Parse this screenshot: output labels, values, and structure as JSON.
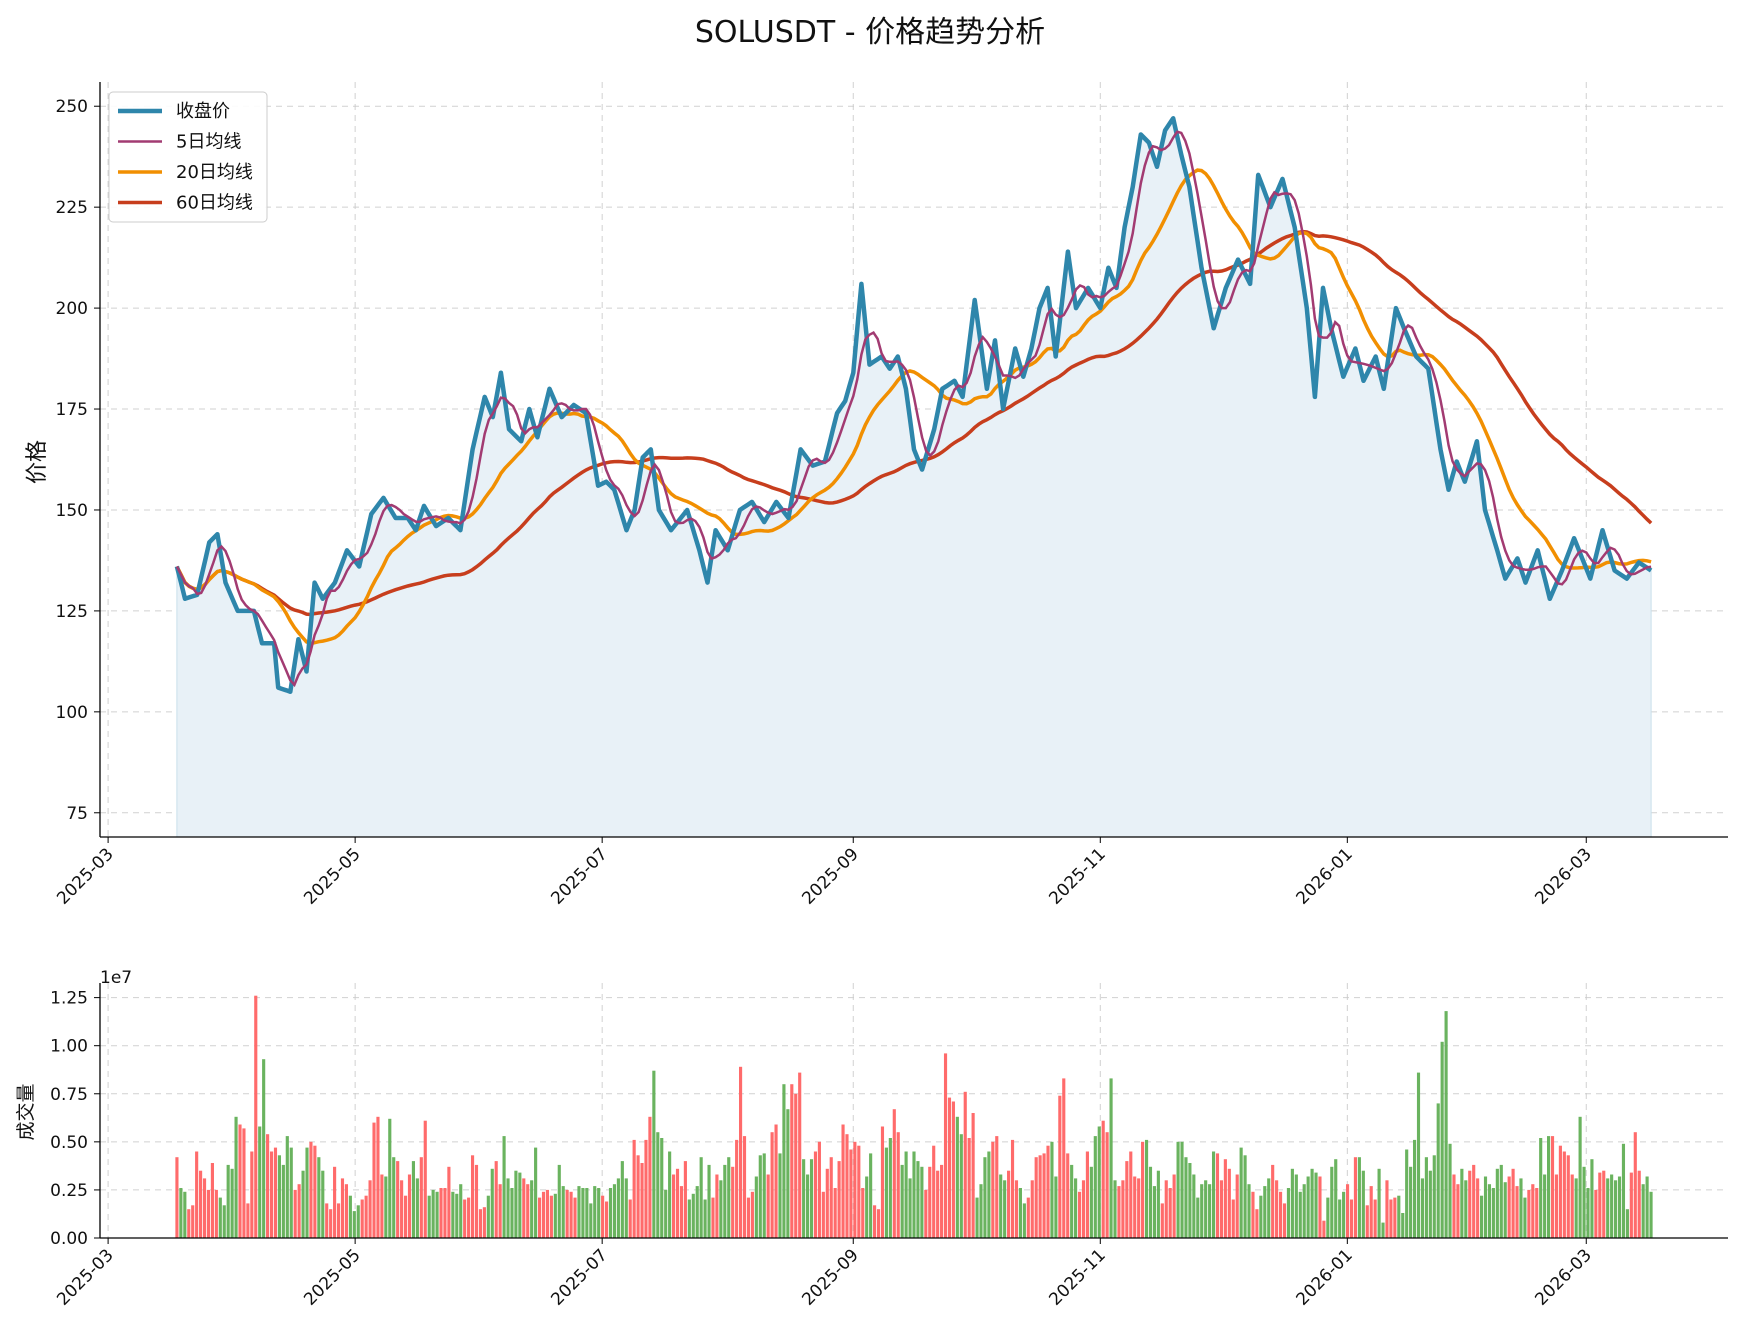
{
  "chart_data": [
    {
      "type": "line",
      "title": "SOLUSDT - 价格趋势分析",
      "ylabel": "价格",
      "xlabel": "",
      "ylim": [
        69,
        256
      ],
      "yticks": [
        75,
        100,
        125,
        150,
        175,
        200,
        225,
        250
      ],
      "xlim": [
        "2025-02-27",
        "2026-04-05"
      ],
      "xticks": [
        "2025-03",
        "2025-05",
        "2025-07",
        "2025-09",
        "2025-11",
        "2026-01",
        "2026-03"
      ],
      "grid": true,
      "legend_position": "top-left",
      "series": [
        {
          "name": "收盘价",
          "color": "#2E86AB",
          "fill": "#E8F1F7",
          "points": [
            [
              "2025-03-18",
              136
            ],
            [
              "2025-03-20",
              128
            ],
            [
              "2025-03-23",
              129
            ],
            [
              "2025-03-26",
              142
            ],
            [
              "2025-03-28",
              144
            ],
            [
              "2025-03-30",
              132
            ],
            [
              "2025-04-02",
              125
            ],
            [
              "2025-04-06",
              125
            ],
            [
              "2025-04-08",
              117
            ],
            [
              "2025-04-11",
              117
            ],
            [
              "2025-04-12",
              106
            ],
            [
              "2025-04-15",
              105
            ],
            [
              "2025-04-17",
              118
            ],
            [
              "2025-04-19",
              110
            ],
            [
              "2025-04-21",
              132
            ],
            [
              "2025-04-23",
              128
            ],
            [
              "2025-04-26",
              132
            ],
            [
              "2025-04-29",
              140
            ],
            [
              "2025-05-02",
              136
            ],
            [
              "2025-05-05",
              149
            ],
            [
              "2025-05-08",
              153
            ],
            [
              "2025-05-11",
              148
            ],
            [
              "2025-05-14",
              148
            ],
            [
              "2025-05-16",
              145
            ],
            [
              "2025-05-18",
              151
            ],
            [
              "2025-05-21",
              146
            ],
            [
              "2025-05-24",
              148
            ],
            [
              "2025-05-27",
              145
            ],
            [
              "2025-05-30",
              165
            ],
            [
              "2025-06-02",
              178
            ],
            [
              "2025-06-04",
              173
            ],
            [
              "2025-06-06",
              184
            ],
            [
              "2025-06-08",
              170
            ],
            [
              "2025-06-11",
              167
            ],
            [
              "2025-06-13",
              175
            ],
            [
              "2025-06-15",
              168
            ],
            [
              "2025-06-18",
              180
            ],
            [
              "2025-06-21",
              173
            ],
            [
              "2025-06-24",
              176
            ],
            [
              "2025-06-27",
              174
            ],
            [
              "2025-06-30",
              156
            ],
            [
              "2025-07-02",
              157
            ],
            [
              "2025-07-04",
              155
            ],
            [
              "2025-07-07",
              145
            ],
            [
              "2025-07-09",
              150
            ],
            [
              "2025-07-11",
              163
            ],
            [
              "2025-07-13",
              165
            ],
            [
              "2025-07-15",
              150
            ],
            [
              "2025-07-18",
              145
            ],
            [
              "2025-07-22",
              150
            ],
            [
              "2025-07-25",
              140
            ],
            [
              "2025-07-27",
              132
            ],
            [
              "2025-07-29",
              145
            ],
            [
              "2025-08-01",
              140
            ],
            [
              "2025-08-04",
              150
            ],
            [
              "2025-08-07",
              152
            ],
            [
              "2025-08-10",
              147
            ],
            [
              "2025-08-13",
              152
            ],
            [
              "2025-08-16",
              148
            ],
            [
              "2025-08-19",
              165
            ],
            [
              "2025-08-22",
              161
            ],
            [
              "2025-08-25",
              162
            ],
            [
              "2025-08-28",
              174
            ],
            [
              "2025-08-30",
              177
            ],
            [
              "2025-09-01",
              184
            ],
            [
              "2025-09-03",
              206
            ],
            [
              "2025-09-05",
              186
            ],
            [
              "2025-09-08",
              188
            ],
            [
              "2025-09-10",
              185
            ],
            [
              "2025-09-12",
              188
            ],
            [
              "2025-09-14",
              180
            ],
            [
              "2025-09-16",
              165
            ],
            [
              "2025-09-18",
              160
            ],
            [
              "2025-09-21",
              170
            ],
            [
              "2025-09-23",
              180
            ],
            [
              "2025-09-26",
              182
            ],
            [
              "2025-09-28",
              178
            ],
            [
              "2025-10-01",
              202
            ],
            [
              "2025-10-04",
              180
            ],
            [
              "2025-10-06",
              192
            ],
            [
              "2025-10-08",
              175
            ],
            [
              "2025-10-11",
              190
            ],
            [
              "2025-10-13",
              183
            ],
            [
              "2025-10-15",
              190
            ],
            [
              "2025-10-17",
              200
            ],
            [
              "2025-10-19",
              205
            ],
            [
              "2025-10-21",
              188
            ],
            [
              "2025-10-24",
              214
            ],
            [
              "2025-10-26",
              200
            ],
            [
              "2025-10-29",
              205
            ],
            [
              "2025-11-01",
              200
            ],
            [
              "2025-11-03",
              210
            ],
            [
              "2025-11-05",
              205
            ],
            [
              "2025-11-07",
              220
            ],
            [
              "2025-11-09",
              230
            ],
            [
              "2025-11-11",
              243
            ],
            [
              "2025-11-13",
              241
            ],
            [
              "2025-11-15",
              235
            ],
            [
              "2025-11-17",
              244
            ],
            [
              "2025-11-19",
              247
            ],
            [
              "2025-11-21",
              238
            ],
            [
              "2025-11-23",
              230
            ],
            [
              "2025-11-26",
              210
            ],
            [
              "2025-11-29",
              195
            ],
            [
              "2025-12-02",
              205
            ],
            [
              "2025-12-05",
              212
            ],
            [
              "2025-12-08",
              206
            ],
            [
              "2025-12-10",
              233
            ],
            [
              "2025-12-13",
              225
            ],
            [
              "2025-12-16",
              232
            ],
            [
              "2025-12-19",
              220
            ],
            [
              "2025-12-22",
              200
            ],
            [
              "2025-12-24",
              178
            ],
            [
              "2025-12-26",
              205
            ],
            [
              "2025-12-28",
              195
            ],
            [
              "2025-12-31",
              183
            ],
            [
              "2026-01-03",
              190
            ],
            [
              "2026-01-05",
              182
            ],
            [
              "2026-01-08",
              188
            ],
            [
              "2026-01-10",
              180
            ],
            [
              "2026-01-13",
              200
            ],
            [
              "2026-01-15",
              195
            ],
            [
              "2026-01-18",
              188
            ],
            [
              "2026-01-21",
              185
            ],
            [
              "2026-01-24",
              165
            ],
            [
              "2026-01-26",
              155
            ],
            [
              "2026-01-28",
              162
            ],
            [
              "2026-01-30",
              157
            ],
            [
              "2026-02-02",
              167
            ],
            [
              "2026-02-04",
              150
            ],
            [
              "2026-02-07",
              140
            ],
            [
              "2026-02-09",
              133
            ],
            [
              "2026-02-12",
              138
            ],
            [
              "2026-02-14",
              132
            ],
            [
              "2026-02-17",
              140
            ],
            [
              "2026-02-20",
              128
            ],
            [
              "2026-02-23",
              135
            ],
            [
              "2026-02-26",
              143
            ],
            [
              "2026-02-28",
              138
            ],
            [
              "2026-03-02",
              133
            ],
            [
              "2026-03-05",
              145
            ],
            [
              "2026-03-08",
              135
            ],
            [
              "2026-03-11",
              133
            ],
            [
              "2026-03-14",
              137
            ],
            [
              "2026-03-17",
              135
            ]
          ]
        },
        {
          "name": "5日均线",
          "color": "#A23B72",
          "points": []
        },
        {
          "name": "20日均线",
          "color": "#F18F01",
          "points": []
        },
        {
          "name": "60日均线",
          "color": "#C73E1D",
          "points": []
        }
      ]
    },
    {
      "type": "bar",
      "ylabel": "成交量",
      "scale_label": "1e7",
      "ylim": [
        0,
        1.3
      ],
      "yticks": [
        "0.00",
        "0.25",
        "0.50",
        "0.75",
        "1.00",
        "1.25"
      ],
      "xticks": [
        "2025-03",
        "2025-05",
        "2025-07",
        "2025-09",
        "2025-11",
        "2026-01",
        "2026-03"
      ],
      "up_color": "#FF6B6B",
      "down_color": "#6AB35F",
      "values": [
        0.42,
        0.26,
        0.24,
        0.15,
        0.17,
        0.45,
        0.35,
        0.31,
        0.25,
        0.39,
        0.25,
        0.21,
        0.17,
        0.38,
        0.36,
        0.63,
        0.59,
        0.57,
        0.18,
        0.45,
        1.26,
        0.58,
        0.93,
        0.54,
        0.45,
        0.47,
        0.43,
        0.38,
        0.53,
        0.47,
        0.25,
        0.28,
        0.35,
        0.47,
        0.5,
        0.48,
        0.42,
        0.35,
        0.18,
        0.15,
        0.37,
        0.18,
        0.31,
        0.28,
        0.22,
        0.14,
        0.17,
        0.2,
        0.22,
        0.3,
        0.6,
        0.63,
        0.33,
        0.32,
        0.62,
        0.42,
        0.4,
        0.3,
        0.22,
        0.33,
        0.4,
        0.31,
        0.42,
        0.61,
        0.22,
        0.25,
        0.24,
        0.26,
        0.26,
        0.37,
        0.24,
        0.23,
        0.28,
        0.2,
        0.21,
        0.43,
        0.38,
        0.15,
        0.16,
        0.22,
        0.36,
        0.4,
        0.28,
        0.53,
        0.31,
        0.26,
        0.35,
        0.34,
        0.31,
        0.28,
        0.3,
        0.47,
        0.21,
        0.24,
        0.25,
        0.22,
        0.23,
        0.38,
        0.27,
        0.25,
        0.24,
        0.21,
        0.27,
        0.26,
        0.26,
        0.18,
        0.27,
        0.26,
        0.22,
        0.19,
        0.26,
        0.28,
        0.31,
        0.4,
        0.31,
        0.2,
        0.51,
        0.43,
        0.39,
        0.51,
        0.63,
        0.87,
        0.55,
        0.52,
        0.25,
        0.45,
        0.33,
        0.36,
        0.27,
        0.4,
        0.2,
        0.23,
        0.27,
        0.42,
        0.2,
        0.38,
        0.21,
        0.33,
        0.3,
        0.38,
        0.42,
        0.37,
        0.51,
        0.89,
        0.53,
        0.21,
        0.24,
        0.32,
        0.43,
        0.44,
        0.33,
        0.55,
        0.59,
        0.44,
        0.8,
        0.67,
        0.8,
        0.75,
        0.86,
        0.41,
        0.33,
        0.41,
        0.45,
        0.5,
        0.24,
        0.36,
        0.42,
        0.26,
        0.4,
        0.59,
        0.54,
        0.46,
        0.5,
        0.48,
        0.26,
        0.32,
        0.44,
        0.17,
        0.15,
        0.58,
        0.47,
        0.52,
        0.67,
        0.55,
        0.38,
        0.45,
        0.31,
        0.45,
        0.4,
        0.37,
        0.25,
        0.37,
        0.48,
        0.35,
        0.38,
        0.96,
        0.73,
        0.71,
        0.63,
        0.54,
        0.76,
        0.52,
        0.65,
        0.21,
        0.28,
        0.42,
        0.45,
        0.5,
        0.53,
        0.33,
        0.3,
        0.35,
        0.51,
        0.3,
        0.26,
        0.18,
        0.21,
        0.3,
        0.42,
        0.43,
        0.44,
        0.48,
        0.5,
        0.32,
        0.74,
        0.83,
        0.44,
        0.38,
        0.31,
        0.24,
        0.3,
        0.45,
        0.37,
        0.53,
        0.58,
        0.61,
        0.55,
        0.83,
        0.3,
        0.27,
        0.3,
        0.4,
        0.45,
        0.32,
        0.31,
        0.5,
        0.51,
        0.37,
        0.27,
        0.35,
        0.18,
        0.3,
        0.26,
        0.33,
        0.5,
        0.5,
        0.42,
        0.39,
        0.33,
        0.21,
        0.28,
        0.3,
        0.28,
        0.45,
        0.44,
        0.3,
        0.41,
        0.36,
        0.2,
        0.33,
        0.47,
        0.43,
        0.28,
        0.24,
        0.15,
        0.22,
        0.27,
        0.31,
        0.38,
        0.3,
        0.24,
        0.18,
        0.26,
        0.36,
        0.33,
        0.24,
        0.28,
        0.32,
        0.36,
        0.34,
        0.32,
        0.09,
        0.21,
        0.37,
        0.41,
        0.2,
        0.24,
        0.28,
        0.2,
        0.42,
        0.42,
        0.35,
        0.17,
        0.27,
        0.2,
        0.36,
        0.08,
        0.3,
        0.2,
        0.21,
        0.22,
        0.13,
        0.46,
        0.37,
        0.51,
        0.86,
        0.31,
        0.42,
        0.35,
        0.43,
        0.7,
        1.02,
        1.18,
        0.49,
        0.33,
        0.28,
        0.36,
        0.3,
        0.35,
        0.38,
        0.31,
        0.22,
        0.32,
        0.28,
        0.26,
        0.36,
        0.38,
        0.29,
        0.32,
        0.36,
        0.27,
        0.31,
        0.21,
        0.25,
        0.28,
        0.26,
        0.52,
        0.33,
        0.53,
        0.53,
        0.33,
        0.48,
        0.45,
        0.43,
        0.33,
        0.31,
        0.63,
        0.37,
        0.26,
        0.41,
        0.25,
        0.34,
        0.35,
        0.31,
        0.33,
        0.3,
        0.32,
        0.49,
        0.15,
        0.34,
        0.55,
        0.35,
        0.28,
        0.32,
        0.24
      ]
    }
  ]
}
